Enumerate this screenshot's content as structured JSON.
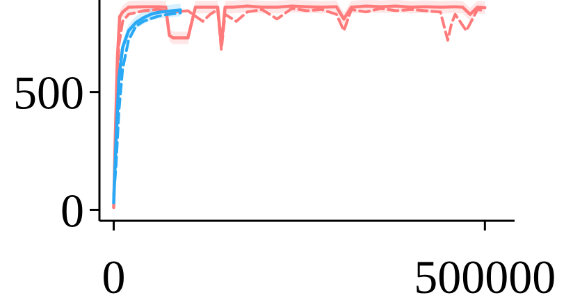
{
  "chart_data": {
    "type": "line",
    "title": "",
    "xlabel": "",
    "ylabel": "",
    "xlim": [
      -8000,
      525000
    ],
    "ylim": [
      -40,
      920
    ],
    "x_ticks": [
      0,
      500000
    ],
    "x_tick_labels": [
      "0",
      "500000"
    ],
    "y_ticks": [
      0,
      500
    ],
    "y_tick_labels": [
      "0",
      "500"
    ],
    "grid": false,
    "legend": "none",
    "series": [
      {
        "color": "#FF7A7A",
        "style": "solid",
        "band": true,
        "x": [
          0,
          2000,
          5000,
          8000,
          12000,
          20000,
          40000,
          60000,
          70000,
          75000,
          80000,
          100000,
          110000,
          130000,
          140000,
          145000,
          150000,
          160000,
          180000,
          200000,
          220000,
          240000,
          260000,
          280000,
          300000,
          310000,
          320000,
          340000,
          360000,
          380000,
          400000,
          420000,
          440000,
          460000,
          470000,
          480000,
          485000,
          490000,
          500000
        ],
        "y": [
          10,
          300,
          650,
          820,
          840,
          860,
          862,
          862,
          860,
          740,
          730,
          730,
          860,
          860,
          860,
          700,
          860,
          860,
          865,
          860,
          860,
          865,
          862,
          860,
          862,
          810,
          860,
          865,
          862,
          865,
          860,
          862,
          860,
          862,
          860,
          830,
          845,
          860,
          858
        ]
      },
      {
        "color": "#FF7A7A",
        "style": "dashed",
        "band": false,
        "x": [
          0,
          3000,
          7000,
          12000,
          20000,
          40000,
          60000,
          80000,
          100000,
          120000,
          130000,
          140000,
          145000,
          150000,
          165000,
          180000,
          200000,
          220000,
          240000,
          260000,
          280000,
          300000,
          310000,
          320000,
          340000,
          360000,
          380000,
          400000,
          420000,
          440000,
          450000,
          455000,
          460000,
          475000,
          490000,
          500000
        ],
        "y": [
          20,
          350,
          700,
          800,
          830,
          845,
          850,
          840,
          845,
          800,
          830,
          850,
          680,
          830,
          800,
          840,
          850,
          810,
          855,
          845,
          850,
          830,
          760,
          850,
          840,
          855,
          845,
          850,
          845,
          840,
          720,
          790,
          830,
          760,
          850,
          845
        ]
      },
      {
        "color": "#29A9F5",
        "style": "solid",
        "band": true,
        "x": [
          0,
          3000,
          7000,
          12000,
          20000,
          30000,
          40000,
          50000,
          60000,
          70000,
          80000,
          90000
        ],
        "y": [
          30,
          280,
          560,
          690,
          760,
          795,
          815,
          830,
          838,
          842,
          845,
          848
        ]
      },
      {
        "color": "#29A9F5",
        "style": "dashed",
        "band": false,
        "x": [
          0,
          3000,
          7000,
          12000,
          20000,
          30000,
          40000,
          50000,
          60000,
          70000,
          80000,
          90000
        ],
        "y": [
          60,
          180,
          420,
          600,
          720,
          780,
          800,
          812,
          822,
          828,
          832,
          836
        ]
      }
    ]
  }
}
